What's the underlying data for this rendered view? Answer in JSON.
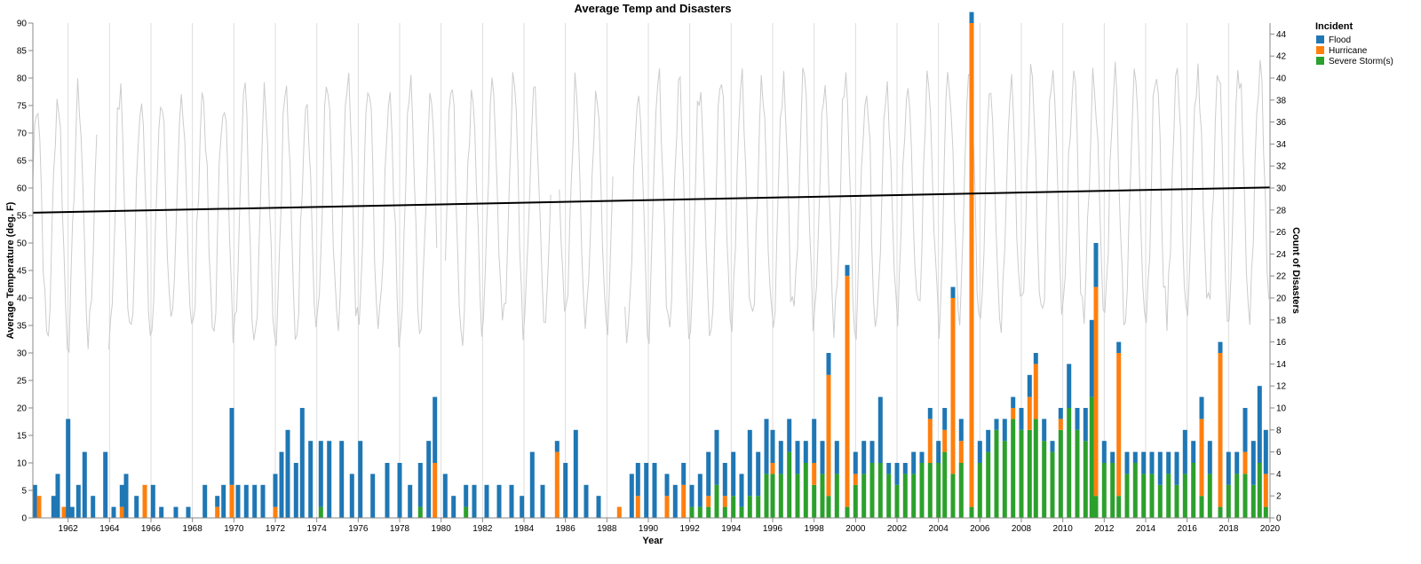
{
  "chart_data": {
    "type": "bar",
    "title": "Average Temp and Disasters",
    "xlabel": "Year",
    "ylabel_left": "Average Temperature (deg. F)",
    "ylabel_right": "Count of Disasters",
    "x_domain": [
      1960.3,
      2020
    ],
    "x_ticks": [
      "1962",
      "1964",
      "1966",
      "1968",
      "1970",
      "1972",
      "1974",
      "1976",
      "1978",
      "1980",
      "1982",
      "1984",
      "1986",
      "1988",
      "1990",
      "1992",
      "1994",
      "1996",
      "1998",
      "2000",
      "2002",
      "2004",
      "2006",
      "2008",
      "2010",
      "2012",
      "2014",
      "2016",
      "2018",
      "2020"
    ],
    "y_left_range": [
      0,
      90
    ],
    "y_left_ticks": [
      "0",
      "5",
      "10",
      "15",
      "20",
      "25",
      "30",
      "35",
      "40",
      "45",
      "50",
      "55",
      "60",
      "65",
      "70",
      "75",
      "80",
      "85",
      "90"
    ],
    "y_right_range": [
      0,
      45
    ],
    "y_right_ticks": [
      "0",
      "2",
      "4",
      "6",
      "8",
      "10",
      "12",
      "14",
      "16",
      "18",
      "20",
      "22",
      "24",
      "26",
      "28",
      "30",
      "32",
      "34",
      "36",
      "38",
      "40",
      "42",
      "44"
    ],
    "grid": "vertical",
    "legend": {
      "title": "Incident",
      "placement": "top-right",
      "items": [
        {
          "label": "Flood",
          "color": "#1f77b4"
        },
        {
          "label": "Hurricane",
          "color": "#ff7f0e"
        },
        {
          "label": "Severe Storm(s)",
          "color": "#2ca02c"
        }
      ]
    },
    "trend_line": {
      "color": "#000000",
      "start": [
        1960.3,
        55.5
      ],
      "end": [
        2020,
        60.1
      ]
    },
    "temperature_line": {
      "color": "#cccccc",
      "note_series": "monthly average temperature (deg. F)",
      "month_step": 0.0833,
      "mean": 57,
      "amplitude": 22
    },
    "disaster_bars": [
      {
        "x": 1960.4,
        "flood": 3,
        "hurricane": 0,
        "storm": 0
      },
      {
        "x": 1960.6,
        "flood": 0,
        "hurricane": 2,
        "storm": 0
      },
      {
        "x": 1961.3,
        "flood": 2,
        "hurricane": 0,
        "storm": 0
      },
      {
        "x": 1961.5,
        "flood": 4,
        "hurricane": 0,
        "storm": 0
      },
      {
        "x": 1961.8,
        "flood": 0,
        "hurricane": 1,
        "storm": 0
      },
      {
        "x": 1962.0,
        "flood": 9,
        "hurricane": 0,
        "storm": 0
      },
      {
        "x": 1962.2,
        "flood": 1,
        "hurricane": 0,
        "storm": 0
      },
      {
        "x": 1962.5,
        "flood": 3,
        "hurricane": 0,
        "storm": 0
      },
      {
        "x": 1962.8,
        "flood": 6,
        "hurricane": 0,
        "storm": 0
      },
      {
        "x": 1963.2,
        "flood": 2,
        "hurricane": 0,
        "storm": 0
      },
      {
        "x": 1963.8,
        "flood": 6,
        "hurricane": 0,
        "storm": 0
      },
      {
        "x": 1964.2,
        "flood": 1,
        "hurricane": 0,
        "storm": 0
      },
      {
        "x": 1964.6,
        "flood": 2,
        "hurricane": 1,
        "storm": 0
      },
      {
        "x": 1964.8,
        "flood": 4,
        "hurricane": 0,
        "storm": 0
      },
      {
        "x": 1965.3,
        "flood": 2,
        "hurricane": 0,
        "storm": 0
      },
      {
        "x": 1965.7,
        "flood": 0,
        "hurricane": 3,
        "storm": 0
      },
      {
        "x": 1966.1,
        "flood": 3,
        "hurricane": 0,
        "storm": 0
      },
      {
        "x": 1966.5,
        "flood": 1,
        "hurricane": 0,
        "storm": 0
      },
      {
        "x": 1967.2,
        "flood": 1,
        "hurricane": 0,
        "storm": 0
      },
      {
        "x": 1967.8,
        "flood": 1,
        "hurricane": 0,
        "storm": 0
      },
      {
        "x": 1968.6,
        "flood": 3,
        "hurricane": 0,
        "storm": 0
      },
      {
        "x": 1969.2,
        "flood": 1,
        "hurricane": 1,
        "storm": 0
      },
      {
        "x": 1969.5,
        "flood": 3,
        "hurricane": 0,
        "storm": 0
      },
      {
        "x": 1969.9,
        "flood": 7,
        "hurricane": 3,
        "storm": 0
      },
      {
        "x": 1970.2,
        "flood": 3,
        "hurricane": 0,
        "storm": 0
      },
      {
        "x": 1970.6,
        "flood": 3,
        "hurricane": 0,
        "storm": 0
      },
      {
        "x": 1971.0,
        "flood": 3,
        "hurricane": 0,
        "storm": 0
      },
      {
        "x": 1971.4,
        "flood": 3,
        "hurricane": 0,
        "storm": 0
      },
      {
        "x": 1972.0,
        "flood": 3,
        "hurricane": 1,
        "storm": 0
      },
      {
        "x": 1972.3,
        "flood": 6,
        "hurricane": 0,
        "storm": 0
      },
      {
        "x": 1972.6,
        "flood": 8,
        "hurricane": 0,
        "storm": 0
      },
      {
        "x": 1973.0,
        "flood": 5,
        "hurricane": 0,
        "storm": 0
      },
      {
        "x": 1973.3,
        "flood": 10,
        "hurricane": 0,
        "storm": 0
      },
      {
        "x": 1973.7,
        "flood": 7,
        "hurricane": 0,
        "storm": 0
      },
      {
        "x": 1974.2,
        "flood": 6,
        "hurricane": 0,
        "storm": 1
      },
      {
        "x": 1974.6,
        "flood": 7,
        "hurricane": 0,
        "storm": 0
      },
      {
        "x": 1975.2,
        "flood": 7,
        "hurricane": 0,
        "storm": 0
      },
      {
        "x": 1975.7,
        "flood": 4,
        "hurricane": 0,
        "storm": 0
      },
      {
        "x": 1976.1,
        "flood": 7,
        "hurricane": 0,
        "storm": 0
      },
      {
        "x": 1976.7,
        "flood": 4,
        "hurricane": 0,
        "storm": 0
      },
      {
        "x": 1977.4,
        "flood": 5,
        "hurricane": 0,
        "storm": 0
      },
      {
        "x": 1978.0,
        "flood": 5,
        "hurricane": 0,
        "storm": 0
      },
      {
        "x": 1978.5,
        "flood": 3,
        "hurricane": 0,
        "storm": 0
      },
      {
        "x": 1979.0,
        "flood": 4,
        "hurricane": 0,
        "storm": 1
      },
      {
        "x": 1979.4,
        "flood": 7,
        "hurricane": 0,
        "storm": 0
      },
      {
        "x": 1979.7,
        "flood": 6,
        "hurricane": 5,
        "storm": 0
      },
      {
        "x": 1980.2,
        "flood": 4,
        "hurricane": 0,
        "storm": 0
      },
      {
        "x": 1980.6,
        "flood": 2,
        "hurricane": 0,
        "storm": 0
      },
      {
        "x": 1981.2,
        "flood": 2,
        "hurricane": 0,
        "storm": 1
      },
      {
        "x": 1981.6,
        "flood": 3,
        "hurricane": 0,
        "storm": 0
      },
      {
        "x": 1982.2,
        "flood": 3,
        "hurricane": 0,
        "storm": 0
      },
      {
        "x": 1982.8,
        "flood": 3,
        "hurricane": 0,
        "storm": 0
      },
      {
        "x": 1983.4,
        "flood": 3,
        "hurricane": 0,
        "storm": 0
      },
      {
        "x": 1983.9,
        "flood": 2,
        "hurricane": 0,
        "storm": 0
      },
      {
        "x": 1984.4,
        "flood": 6,
        "hurricane": 0,
        "storm": 0
      },
      {
        "x": 1984.9,
        "flood": 3,
        "hurricane": 0,
        "storm": 0
      },
      {
        "x": 1985.6,
        "flood": 1,
        "hurricane": 6,
        "storm": 0
      },
      {
        "x": 1986.0,
        "flood": 5,
        "hurricane": 0,
        "storm": 0
      },
      {
        "x": 1986.5,
        "flood": 8,
        "hurricane": 0,
        "storm": 0
      },
      {
        "x": 1987.0,
        "flood": 3,
        "hurricane": 0,
        "storm": 0
      },
      {
        "x": 1987.6,
        "flood": 2,
        "hurricane": 0,
        "storm": 0
      },
      {
        "x": 1988.6,
        "flood": 0,
        "hurricane": 1,
        "storm": 0
      },
      {
        "x": 1989.2,
        "flood": 4,
        "hurricane": 0,
        "storm": 0
      },
      {
        "x": 1989.5,
        "flood": 3,
        "hurricane": 2,
        "storm": 0
      },
      {
        "x": 1989.9,
        "flood": 5,
        "hurricane": 0,
        "storm": 0
      },
      {
        "x": 1990.3,
        "flood": 5,
        "hurricane": 0,
        "storm": 0
      },
      {
        "x": 1990.9,
        "flood": 2,
        "hurricane": 2,
        "storm": 0
      },
      {
        "x": 1991.3,
        "flood": 3,
        "hurricane": 0,
        "storm": 0
      },
      {
        "x": 1991.7,
        "flood": 2,
        "hurricane": 3,
        "storm": 0
      },
      {
        "x": 1992.1,
        "flood": 2,
        "hurricane": 0,
        "storm": 1
      },
      {
        "x": 1992.5,
        "flood": 3,
        "hurricane": 0,
        "storm": 1
      },
      {
        "x": 1992.9,
        "flood": 4,
        "hurricane": 1,
        "storm": 1
      },
      {
        "x": 1993.3,
        "flood": 5,
        "hurricane": 0,
        "storm": 3
      },
      {
        "x": 1993.7,
        "flood": 3,
        "hurricane": 1,
        "storm": 1
      },
      {
        "x": 1994.1,
        "flood": 4,
        "hurricane": 0,
        "storm": 2
      },
      {
        "x": 1994.5,
        "flood": 3,
        "hurricane": 0,
        "storm": 1
      },
      {
        "x": 1994.9,
        "flood": 6,
        "hurricane": 0,
        "storm": 2
      },
      {
        "x": 1995.3,
        "flood": 4,
        "hurricane": 0,
        "storm": 2
      },
      {
        "x": 1995.7,
        "flood": 5,
        "hurricane": 0,
        "storm": 4
      },
      {
        "x": 1996.0,
        "flood": 3,
        "hurricane": 1,
        "storm": 4
      },
      {
        "x": 1996.4,
        "flood": 3,
        "hurricane": 0,
        "storm": 4
      },
      {
        "x": 1996.8,
        "flood": 3,
        "hurricane": 0,
        "storm": 6
      },
      {
        "x": 1997.2,
        "flood": 3,
        "hurricane": 0,
        "storm": 4
      },
      {
        "x": 1997.6,
        "flood": 2,
        "hurricane": 0,
        "storm": 5
      },
      {
        "x": 1998.0,
        "flood": 4,
        "hurricane": 2,
        "storm": 3
      },
      {
        "x": 1998.4,
        "flood": 3,
        "hurricane": 0,
        "storm": 4
      },
      {
        "x": 1998.7,
        "flood": 2,
        "hurricane": 11,
        "storm": 2
      },
      {
        "x": 1999.1,
        "flood": 3,
        "hurricane": 0,
        "storm": 4
      },
      {
        "x": 1999.6,
        "flood": 1,
        "hurricane": 21,
        "storm": 1
      },
      {
        "x": 2000.0,
        "flood": 2,
        "hurricane": 1,
        "storm": 3
      },
      {
        "x": 2000.4,
        "flood": 3,
        "hurricane": 0,
        "storm": 4
      },
      {
        "x": 2000.8,
        "flood": 2,
        "hurricane": 0,
        "storm": 5
      },
      {
        "x": 2001.2,
        "flood": 6,
        "hurricane": 0,
        "storm": 5
      },
      {
        "x": 2001.6,
        "flood": 1,
        "hurricane": 0,
        "storm": 4
      },
      {
        "x": 2002.0,
        "flood": 2,
        "hurricane": 0,
        "storm": 3
      },
      {
        "x": 2002.4,
        "flood": 1,
        "hurricane": 0,
        "storm": 4
      },
      {
        "x": 2002.8,
        "flood": 2,
        "hurricane": 0,
        "storm": 4
      },
      {
        "x": 2003.2,
        "flood": 1,
        "hurricane": 0,
        "storm": 5
      },
      {
        "x": 2003.6,
        "flood": 1,
        "hurricane": 4,
        "storm": 5
      },
      {
        "x": 2004.0,
        "flood": 2,
        "hurricane": 0,
        "storm": 5
      },
      {
        "x": 2004.3,
        "flood": 2,
        "hurricane": 2,
        "storm": 6
      },
      {
        "x": 2004.7,
        "flood": 1,
        "hurricane": 16,
        "storm": 4
      },
      {
        "x": 2005.1,
        "flood": 2,
        "hurricane": 2,
        "storm": 5
      },
      {
        "x": 2005.6,
        "flood": 1,
        "hurricane": 44,
        "storm": 1
      },
      {
        "x": 2006.0,
        "flood": 2,
        "hurricane": 0,
        "storm": 5
      },
      {
        "x": 2006.4,
        "flood": 2,
        "hurricane": 0,
        "storm": 6
      },
      {
        "x": 2006.8,
        "flood": 1,
        "hurricane": 0,
        "storm": 8
      },
      {
        "x": 2007.2,
        "flood": 2,
        "hurricane": 0,
        "storm": 7
      },
      {
        "x": 2007.6,
        "flood": 1,
        "hurricane": 1,
        "storm": 9
      },
      {
        "x": 2008.0,
        "flood": 2,
        "hurricane": 0,
        "storm": 8
      },
      {
        "x": 2008.4,
        "flood": 2,
        "hurricane": 3,
        "storm": 8
      },
      {
        "x": 2008.7,
        "flood": 1,
        "hurricane": 5,
        "storm": 9
      },
      {
        "x": 2009.1,
        "flood": 2,
        "hurricane": 0,
        "storm": 7
      },
      {
        "x": 2009.5,
        "flood": 1,
        "hurricane": 0,
        "storm": 6
      },
      {
        "x": 2009.9,
        "flood": 1,
        "hurricane": 1,
        "storm": 8
      },
      {
        "x": 2010.3,
        "flood": 4,
        "hurricane": 0,
        "storm": 10
      },
      {
        "x": 2010.7,
        "flood": 2,
        "hurricane": 0,
        "storm": 8
      },
      {
        "x": 2011.1,
        "flood": 3,
        "hurricane": 0,
        "storm": 7
      },
      {
        "x": 2011.4,
        "flood": 7,
        "hurricane": 0,
        "storm": 11
      },
      {
        "x": 2011.6,
        "flood": 4,
        "hurricane": 19,
        "storm": 2
      },
      {
        "x": 2012.0,
        "flood": 2,
        "hurricane": 0,
        "storm": 5
      },
      {
        "x": 2012.4,
        "flood": 1,
        "hurricane": 0,
        "storm": 5
      },
      {
        "x": 2012.7,
        "flood": 1,
        "hurricane": 13,
        "storm": 2
      },
      {
        "x": 2013.1,
        "flood": 2,
        "hurricane": 0,
        "storm": 4
      },
      {
        "x": 2013.5,
        "flood": 1,
        "hurricane": 0,
        "storm": 5
      },
      {
        "x": 2013.9,
        "flood": 2,
        "hurricane": 0,
        "storm": 4
      },
      {
        "x": 2014.3,
        "flood": 2,
        "hurricane": 0,
        "storm": 4
      },
      {
        "x": 2014.7,
        "flood": 3,
        "hurricane": 0,
        "storm": 3
      },
      {
        "x": 2015.1,
        "flood": 2,
        "hurricane": 0,
        "storm": 4
      },
      {
        "x": 2015.5,
        "flood": 3,
        "hurricane": 0,
        "storm": 3
      },
      {
        "x": 2015.9,
        "flood": 4,
        "hurricane": 0,
        "storm": 4
      },
      {
        "x": 2016.3,
        "flood": 2,
        "hurricane": 0,
        "storm": 5
      },
      {
        "x": 2016.7,
        "flood": 2,
        "hurricane": 7,
        "storm": 2
      },
      {
        "x": 2017.1,
        "flood": 3,
        "hurricane": 0,
        "storm": 4
      },
      {
        "x": 2017.6,
        "flood": 1,
        "hurricane": 14,
        "storm": 1
      },
      {
        "x": 2018.0,
        "flood": 3,
        "hurricane": 0,
        "storm": 3
      },
      {
        "x": 2018.4,
        "flood": 2,
        "hurricane": 0,
        "storm": 4
      },
      {
        "x": 2018.8,
        "flood": 4,
        "hurricane": 2,
        "storm": 4
      },
      {
        "x": 2019.2,
        "flood": 4,
        "hurricane": 0,
        "storm": 3
      },
      {
        "x": 2019.5,
        "flood": 7,
        "hurricane": 0,
        "storm": 5
      },
      {
        "x": 2019.8,
        "flood": 4,
        "hurricane": 3,
        "storm": 1
      }
    ]
  }
}
